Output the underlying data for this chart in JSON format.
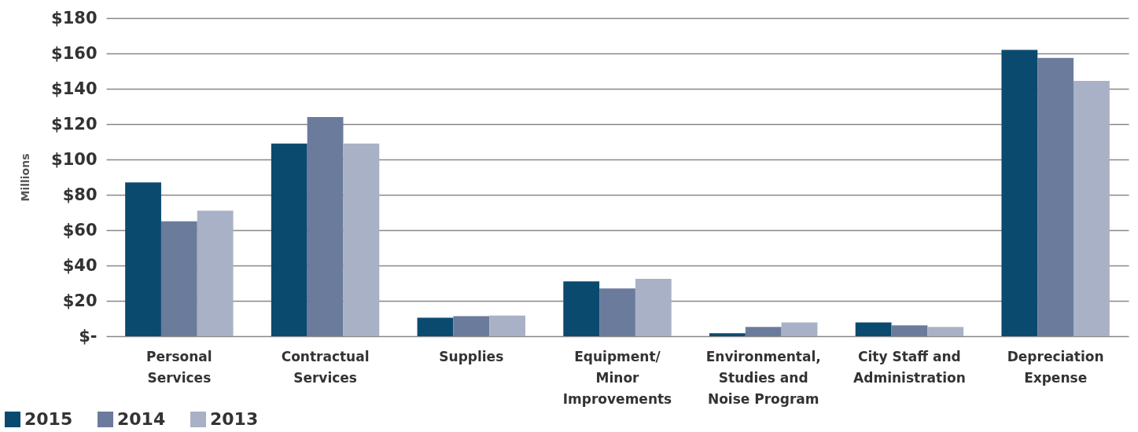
{
  "chart_data": {
    "type": "bar",
    "ylabel": "Millions",
    "categories": [
      "Personal\nServices",
      "Contractual\nServices",
      "Supplies",
      "Equipment/\nMinor\nImprovements",
      "Environmental,\nStudies and\nNoise Program",
      "City Staff and\nAdministration",
      "Depreciation\nExpense"
    ],
    "series": [
      {
        "name": "2015",
        "color": "#0b4a6f",
        "values": [
          87,
          109,
          10.5,
          31,
          1.7,
          7.8,
          162
        ]
      },
      {
        "name": "2014",
        "color": "#6b7b9c",
        "values": [
          65,
          124,
          11.3,
          27,
          5.2,
          6.1,
          157.5
        ]
      },
      {
        "name": "2013",
        "color": "#a9b1c6",
        "values": [
          71,
          109,
          11.7,
          32.5,
          7.8,
          5.2,
          144.5
        ]
      }
    ],
    "ylim": [
      0,
      180
    ],
    "yticks": [
      {
        "value": 0,
        "label": "$-"
      },
      {
        "value": 20,
        "label": "$20"
      },
      {
        "value": 40,
        "label": "$40"
      },
      {
        "value": 60,
        "label": "$60"
      },
      {
        "value": 80,
        "label": "$80"
      },
      {
        "value": 100,
        "label": "$100"
      },
      {
        "value": 120,
        "label": "$120"
      },
      {
        "value": 140,
        "label": "$140"
      },
      {
        "value": 160,
        "label": "$160"
      },
      {
        "value": 180,
        "label": "$180"
      }
    ],
    "grid": "y",
    "legend": "bottom left"
  }
}
